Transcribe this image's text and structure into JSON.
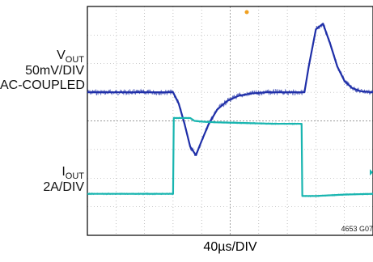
{
  "labels": {
    "vout_prefix": "V",
    "vout_sub": "OUT",
    "vout_scale": "50mV/DIV",
    "vout_coupling": "AC-COUPLED",
    "iout_prefix": "I",
    "iout_sub": "OUT",
    "iout_scale": "2A/DIV",
    "timebase": "40µs/DIV",
    "figure_id": "4653 G07"
  },
  "colors": {
    "vout_trace": "#1f2fa8",
    "iout_trace": "#19b5b0",
    "grid": "#9a9a9a",
    "frame": "#000000",
    "trigger_marker": "#f0a020"
  },
  "chart_data": {
    "type": "line",
    "title": "",
    "xlabel": "40µs/DIV",
    "ylabel": "",
    "grid": true,
    "divisions": {
      "x": 10,
      "y": 8
    },
    "x_units": "µs",
    "x_range": [
      -120,
      280
    ],
    "series": [
      {
        "name": "VOUT",
        "scale_label": "50mV/DIV",
        "units": "mV",
        "x": [
          -120,
          0,
          8,
          16,
          24,
          32,
          40,
          50,
          62,
          76,
          92,
          110,
          130,
          160,
          184,
          180,
          190,
          200,
          210,
          220,
          230,
          240,
          250,
          262,
          280
        ],
        "y": [
          0,
          0,
          -20,
          -55,
          -95,
          -110,
          -85,
          -55,
          -30,
          -15,
          -6,
          -2,
          0,
          0,
          0,
          0,
          45,
          110,
          120,
          85,
          45,
          20,
          8,
          2,
          0
        ]
      },
      {
        "name": "IOUT",
        "scale_label": "2A/DIV",
        "units": "A",
        "x": [
          -120,
          0,
          1,
          24,
          30,
          40,
          60,
          100,
          140,
          180,
          181,
          200,
          240,
          280
        ],
        "y": [
          0,
          0,
          5.3,
          5.3,
          5.1,
          5.05,
          5.0,
          4.95,
          4.9,
          4.9,
          -0.15,
          -0.15,
          -0.05,
          0
        ]
      }
    ]
  }
}
